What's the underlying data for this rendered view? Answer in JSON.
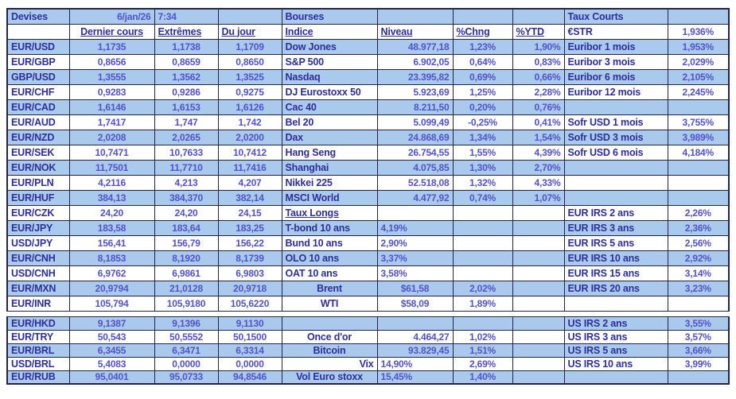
{
  "colors": {
    "row_blue": "#a9caec",
    "label_text": "#2e2e9c",
    "value_text": "#5252cc",
    "border": "#24244a"
  },
  "table": {
    "rows": [
      {
        "shade": "blue",
        "cells": [
          {
            "t": "Devises"
          },
          {
            "t": "6/jan/26",
            "a": "r"
          },
          {
            "t": "7:34",
            "a": "l"
          },
          null,
          {
            "t": "Bourses"
          },
          null,
          null,
          null,
          {
            "t": "Taux Courts"
          },
          null
        ]
      },
      {
        "shade": "white",
        "cells": [
          null,
          {
            "t": "Dernier cours",
            "k": "l",
            "u": 1
          },
          {
            "t": "Extrêmes",
            "k": "l",
            "u": 1,
            "a": "l"
          },
          {
            "t": "Du jour",
            "k": "l",
            "u": 1,
            "a": "l"
          },
          {
            "t": "Indice",
            "k": "l",
            "u": 1
          },
          {
            "t": "Niveau",
            "k": "l",
            "u": 1,
            "a": "l"
          },
          {
            "t": "%Chng",
            "k": "l",
            "u": 1,
            "a": "l"
          },
          {
            "t": "%YTD",
            "k": "l",
            "u": 1,
            "a": "l"
          },
          {
            "t": "€STR"
          },
          {
            "t": "1,936%"
          }
        ]
      },
      {
        "shade": "blue",
        "cells": [
          {
            "t": "EUR/USD"
          },
          {
            "t": "1,1735"
          },
          {
            "t": "1,1738"
          },
          {
            "t": "1,1709"
          },
          {
            "t": "Dow Jones"
          },
          {
            "t": "48.977,18"
          },
          {
            "t": "1,23%"
          },
          {
            "t": "1,90%"
          },
          {
            "t": "Euribor 1 mois"
          },
          {
            "t": "1,953%"
          }
        ]
      },
      {
        "shade": "white",
        "cells": [
          {
            "t": "EUR/GBP"
          },
          {
            "t": "0,8656"
          },
          {
            "t": "0,8659"
          },
          {
            "t": "0,8650"
          },
          {
            "t": "S&P 500"
          },
          {
            "t": "6.902,05"
          },
          {
            "t": "0,64%"
          },
          {
            "t": "0,83%"
          },
          {
            "t": "Euribor 3 mois"
          },
          {
            "t": "2,029%"
          }
        ]
      },
      {
        "shade": "blue",
        "cells": [
          {
            "t": "GBP/USD"
          },
          {
            "t": "1,3555"
          },
          {
            "t": "1,3562"
          },
          {
            "t": "1,3525"
          },
          {
            "t": "Nasdaq"
          },
          {
            "t": "23.395,82"
          },
          {
            "t": "0,69%"
          },
          {
            "t": "0,66%"
          },
          {
            "t": "Euribor 6 mois"
          },
          {
            "t": "2,105%"
          }
        ]
      },
      {
        "shade": "white",
        "cells": [
          {
            "t": "EUR/CHF"
          },
          {
            "t": "0,9283"
          },
          {
            "t": "0,9286"
          },
          {
            "t": "0,9275"
          },
          {
            "t": "DJ Eurostoxx 50"
          },
          {
            "t": "5.923,69"
          },
          {
            "t": "1,25%"
          },
          {
            "t": "2,28%"
          },
          {
            "t": "Euribor 12 mois"
          },
          {
            "t": "2,245%"
          }
        ]
      },
      {
        "shade": "blue",
        "cells": [
          {
            "t": "EUR/CAD"
          },
          {
            "t": "1,6146"
          },
          {
            "t": "1,6153"
          },
          {
            "t": "1,6126"
          },
          {
            "t": "Cac 40"
          },
          {
            "t": "8.211,50"
          },
          {
            "t": "0,20%"
          },
          {
            "t": "0,76%"
          },
          null,
          null
        ]
      },
      {
        "shade": "white",
        "cells": [
          {
            "t": "EUR/AUD"
          },
          {
            "t": "1,7417"
          },
          {
            "t": "1,747"
          },
          {
            "t": "1,742"
          },
          {
            "t": "Bel 20"
          },
          {
            "t": "5.099,49"
          },
          {
            "t": "-0,25%"
          },
          {
            "t": "0,41%"
          },
          {
            "t": "Sofr USD 1 mois"
          },
          {
            "t": "3,755%"
          }
        ]
      },
      {
        "shade": "blue",
        "cells": [
          {
            "t": "EUR/NZD"
          },
          {
            "t": "2,0208"
          },
          {
            "t": "2,0265"
          },
          {
            "t": "2,0200"
          },
          {
            "t": "Dax"
          },
          {
            "t": "24.868,69"
          },
          {
            "t": "1,34%"
          },
          {
            "t": "1,54%"
          },
          {
            "t": "Sofr USD 3 mois"
          },
          {
            "t": "3,989%"
          }
        ]
      },
      {
        "shade": "white",
        "cells": [
          {
            "t": "EUR/SEK"
          },
          {
            "t": "10,7471"
          },
          {
            "t": "10,7633"
          },
          {
            "t": "10,7412"
          },
          {
            "t": "Hang Seng"
          },
          {
            "t": "26.754,55"
          },
          {
            "t": "1,55%"
          },
          {
            "t": "4,39%"
          },
          {
            "t": "Sofr USD 6 mois"
          },
          {
            "t": "4,184%"
          }
        ]
      },
      {
        "shade": "blue",
        "cells": [
          {
            "t": "EUR/NOK"
          },
          {
            "t": "11,7501"
          },
          {
            "t": "11,7710"
          },
          {
            "t": "11,7416"
          },
          {
            "t": "Shanghai"
          },
          {
            "t": "4.075,85"
          },
          {
            "t": "1,30%"
          },
          {
            "t": "2,70%"
          },
          null,
          null
        ]
      },
      {
        "shade": "white",
        "cells": [
          {
            "t": "EUR/PLN"
          },
          {
            "t": "4,2116"
          },
          {
            "t": "4,213"
          },
          {
            "t": "4,207"
          },
          {
            "t": "Nikkei 225"
          },
          {
            "t": "52.518,08"
          },
          {
            "t": "1,32%"
          },
          {
            "t": "4,33%"
          },
          null,
          null
        ]
      },
      {
        "shade": "blue",
        "cells": [
          {
            "t": "EUR/HUF"
          },
          {
            "t": "384,13"
          },
          {
            "t": "384,370"
          },
          {
            "t": "382,14"
          },
          {
            "t": "MSCI World"
          },
          {
            "t": "4.477,92"
          },
          {
            "t": "0,74%"
          },
          {
            "t": "1,07%"
          },
          null,
          null
        ]
      },
      {
        "shade": "white",
        "cells": [
          {
            "t": "EUR/CZK"
          },
          {
            "t": "24,20"
          },
          {
            "t": "24,20"
          },
          {
            "t": "24,15"
          },
          {
            "t": "Taux Longs",
            "u": 1
          },
          null,
          null,
          null,
          {
            "t": "EUR IRS 2 ans"
          },
          {
            "t": "2,26%"
          }
        ]
      },
      {
        "shade": "blue",
        "cells": [
          {
            "t": "EUR/JPY"
          },
          {
            "t": "183,58"
          },
          {
            "t": "183,64"
          },
          {
            "t": "183,25"
          },
          {
            "t": "T-bond 10 ans"
          },
          {
            "t": "4,19%",
            "a": "l"
          },
          null,
          null,
          {
            "t": "EUR IRS 3 ans"
          },
          {
            "t": "2,36%"
          }
        ]
      },
      {
        "shade": "white",
        "cells": [
          {
            "t": "USD/JPY"
          },
          {
            "t": "156,41"
          },
          {
            "t": "156,79"
          },
          {
            "t": "156,22"
          },
          {
            "t": "Bund 10 ans"
          },
          {
            "t": "2,90%",
            "a": "l"
          },
          null,
          null,
          {
            "t": "EUR IRS 5 ans"
          },
          {
            "t": "2,56%"
          }
        ]
      },
      {
        "shade": "blue",
        "cells": [
          {
            "t": "EUR/CNH"
          },
          {
            "t": "8,1853"
          },
          {
            "t": "8,1920"
          },
          {
            "t": "8,1739"
          },
          {
            "t": "OLO 10 ans"
          },
          {
            "t": "3,37%",
            "a": "l"
          },
          null,
          null,
          {
            "t": "EUR IRS 10 ans"
          },
          {
            "t": "2,92%"
          }
        ]
      },
      {
        "shade": "white",
        "cells": [
          {
            "t": "USD/CNH"
          },
          {
            "t": "6,9762"
          },
          {
            "t": "6,9861"
          },
          {
            "t": "6,9803"
          },
          {
            "t": "OAT 10 ans"
          },
          {
            "t": "3,58%",
            "a": "l"
          },
          null,
          null,
          {
            "t": "EUR IRS 15 ans"
          },
          {
            "t": "3,14%"
          }
        ]
      },
      {
        "shade": "blue",
        "cells": [
          {
            "t": "EUR/MXN"
          },
          {
            "t": "20,9794"
          },
          {
            "t": "21,0128"
          },
          {
            "t": "20,9718"
          },
          {
            "t": "Brent",
            "a": "c"
          },
          {
            "t": "$61,58",
            "a": "c"
          },
          {
            "t": "2,02%"
          },
          null,
          {
            "t": "EUR IRS 20 ans"
          },
          {
            "t": "3,23%"
          }
        ]
      },
      {
        "shade": "white",
        "cells": [
          {
            "t": "EUR/INR"
          },
          {
            "t": "105,794"
          },
          {
            "t": "105,9180"
          },
          {
            "t": "105,6220"
          },
          {
            "t": "WTI",
            "a": "c"
          },
          {
            "t": "$58,09",
            "a": "c"
          },
          {
            "t": "1,89%"
          },
          null,
          null,
          null
        ]
      },
      {
        "shade": "gap",
        "cells": [
          null,
          null,
          null,
          null,
          null,
          null,
          null,
          null,
          null,
          null
        ]
      },
      {
        "shade": "blue",
        "cells": [
          {
            "t": "EUR/HKD"
          },
          {
            "t": "9,1387"
          },
          {
            "t": "9,1396"
          },
          {
            "t": "9,1130"
          },
          null,
          null,
          null,
          null,
          {
            "t": "US IRS 2 ans"
          },
          {
            "t": "3,55%"
          }
        ]
      },
      {
        "shade": "white",
        "cells": [
          {
            "t": "EUR/TRY"
          },
          {
            "t": "50,543"
          },
          {
            "t": "50,5552"
          },
          {
            "t": "50,1500"
          },
          {
            "t": "Once d'or",
            "a": "c"
          },
          {
            "t": "4.464,27"
          },
          {
            "t": "1,02%"
          },
          null,
          {
            "t": "US IRS 3 ans"
          },
          {
            "t": "3,57%"
          }
        ]
      },
      {
        "shade": "blue",
        "cells": [
          {
            "t": "EUR/BRL"
          },
          {
            "t": "6,3455"
          },
          {
            "t": "6,3471"
          },
          {
            "t": "6,3314"
          },
          {
            "t": "Bitcoin",
            "a": "c"
          },
          {
            "t": "93.829,45"
          },
          {
            "t": "1,51%"
          },
          null,
          {
            "t": "US IRS 5 ans"
          },
          {
            "t": "3,66%"
          }
        ]
      },
      {
        "shade": "white",
        "cells": [
          {
            "t": "USD/BRL"
          },
          {
            "t": "5,4083"
          },
          {
            "t": "0,0000"
          },
          {
            "t": "0,0000"
          },
          {
            "t": "Vix",
            "a": "r"
          },
          {
            "t": "14,90%",
            "a": "l"
          },
          {
            "t": "2,69%"
          },
          null,
          {
            "t": "US IRS 10 ans"
          },
          {
            "t": "3,99%"
          }
        ]
      },
      {
        "shade": "blue",
        "cells": [
          {
            "t": "EUR/RUB"
          },
          {
            "t": "95,0401"
          },
          {
            "t": "95,0733"
          },
          {
            "t": "94,8546"
          },
          {
            "t": "Vol Euro stoxx",
            "a": "c"
          },
          {
            "t": "15,45%",
            "a": "l"
          },
          {
            "t": "1,40%"
          },
          null,
          null,
          null
        ]
      }
    ]
  }
}
